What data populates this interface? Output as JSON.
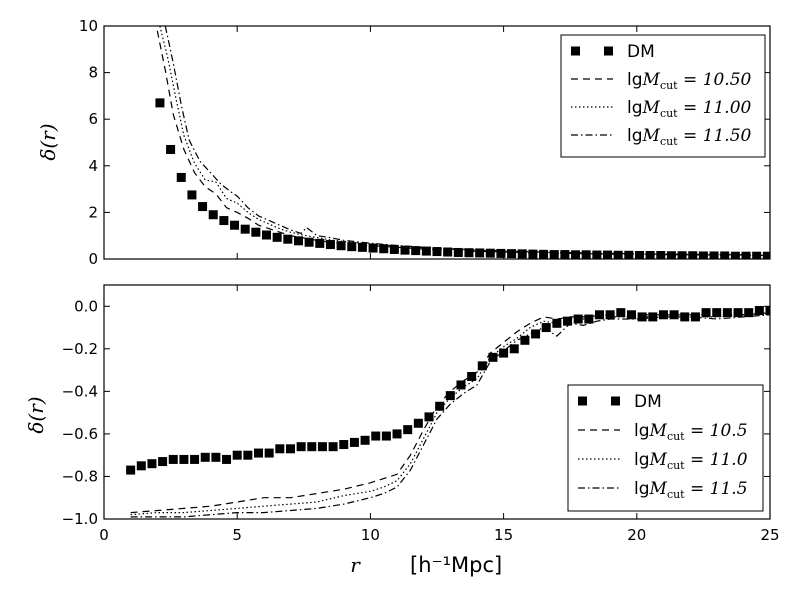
{
  "chart_data": [
    {
      "type": "scatter+line",
      "panel": "top",
      "title": "",
      "xlabel": "",
      "ylabel": "δ(r)",
      "xlim": [
        0,
        25
      ],
      "ylim": [
        0,
        10
      ],
      "xticks": [
        0,
        5,
        10,
        15,
        20,
        25
      ],
      "yticks": [
        0,
        2,
        4,
        6,
        8,
        10
      ],
      "xtick_labels_visible": false,
      "legend_position": "top-right",
      "series": [
        {
          "name": "DM",
          "legend_label": "DM",
          "style": "square-markers",
          "x": [
            2.1,
            2.5,
            2.9,
            3.3,
            3.7,
            4.1,
            4.5,
            4.9,
            5.3,
            5.7,
            6.1,
            6.5,
            6.9,
            7.3,
            7.7,
            8.1,
            8.5,
            8.9,
            9.3,
            9.7,
            10.1,
            10.5,
            10.9,
            11.3,
            11.7,
            12.1,
            12.5,
            12.9,
            13.3,
            13.7,
            14.1,
            14.5,
            14.9,
            15.3,
            15.7,
            16.1,
            16.5,
            16.9,
            17.3,
            17.7,
            18.1,
            18.5,
            18.9,
            19.3,
            19.7,
            20.1,
            20.5,
            20.9,
            21.3,
            21.7,
            22.1,
            22.5,
            22.9,
            23.3,
            23.7,
            24.1,
            24.5,
            24.9
          ],
          "y": [
            6.7,
            4.7,
            3.5,
            2.75,
            2.25,
            1.9,
            1.65,
            1.45,
            1.28,
            1.15,
            1.03,
            0.93,
            0.85,
            0.78,
            0.72,
            0.67,
            0.62,
            0.57,
            0.53,
            0.5,
            0.47,
            0.44,
            0.41,
            0.38,
            0.36,
            0.34,
            0.32,
            0.3,
            0.28,
            0.27,
            0.26,
            0.25,
            0.24,
            0.23,
            0.22,
            0.21,
            0.2,
            0.19,
            0.19,
            0.18,
            0.18,
            0.17,
            0.17,
            0.16,
            0.16,
            0.15,
            0.15,
            0.15,
            0.14,
            0.14,
            0.14,
            0.13,
            0.13,
            0.13,
            0.12,
            0.12,
            0.12,
            0.12
          ]
        },
        {
          "name": "lgMcut=10.50",
          "legend_prefix": "lg",
          "legend_math": "M",
          "legend_sub": "cut",
          "legend_value": " = 10.50",
          "style": "dashed",
          "x": [
            2.0,
            2.3,
            2.6,
            3.0,
            3.4,
            3.8,
            4.2,
            4.6,
            5.0,
            5.4,
            5.8,
            6.2,
            6.6,
            7.0,
            7.5,
            8.0,
            8.5,
            9.0,
            10.0,
            11.0,
            12.0,
            13.0,
            14.0,
            15.0,
            16.0,
            17.0,
            18.0,
            19.0,
            20.0,
            21.0,
            22.0,
            23.0,
            24.0,
            25.0
          ],
          "y": [
            9.8,
            8.1,
            6.2,
            4.7,
            3.7,
            3.1,
            2.8,
            2.2,
            2.0,
            1.75,
            1.45,
            1.3,
            1.15,
            1.0,
            0.9,
            0.8,
            0.72,
            0.66,
            0.58,
            0.5,
            0.43,
            0.38,
            0.33,
            0.3,
            0.27,
            0.25,
            0.23,
            0.21,
            0.2,
            0.19,
            0.18,
            0.17,
            0.16,
            0.15
          ]
        },
        {
          "name": "lgMcut=11.00",
          "legend_prefix": "lg",
          "legend_math": "M",
          "legend_sub": "cut",
          "legend_value": " = 11.00",
          "style": "dotted",
          "x": [
            2.1,
            2.4,
            2.7,
            3.0,
            3.4,
            3.8,
            4.2,
            4.6,
            5.0,
            5.4,
            5.8,
            6.2,
            6.6,
            7.0,
            7.5,
            8.0,
            8.5,
            9.0,
            10.0,
            11.0,
            12.0,
            13.0,
            14.0,
            15.0,
            16.0,
            17.0,
            18.0,
            19.0,
            20.0,
            21.0,
            22.0,
            23.0,
            24.0,
            25.0
          ],
          "y": [
            10.0,
            8.6,
            6.9,
            5.3,
            4.1,
            3.4,
            3.3,
            2.6,
            2.4,
            2.0,
            1.7,
            1.5,
            1.3,
            1.15,
            1.02,
            0.92,
            0.82,
            0.75,
            0.65,
            0.56,
            0.48,
            0.42,
            0.37,
            0.33,
            0.3,
            0.27,
            0.25,
            0.23,
            0.21,
            0.2,
            0.19,
            0.18,
            0.17,
            0.16
          ]
        },
        {
          "name": "lgMcut=11.50",
          "legend_prefix": "lg",
          "legend_math": "M",
          "legend_sub": "cut",
          "legend_value": " = 11.50",
          "style": "dashdot",
          "x": [
            2.3,
            2.6,
            2.9,
            3.2,
            3.6,
            4.0,
            4.4,
            4.8,
            5.0,
            5.4,
            5.8,
            6.2,
            6.6,
            7.0,
            7.4,
            7.6,
            8.0,
            8.5,
            9.0,
            10.0,
            11.0,
            12.0,
            13.0,
            14.0,
            15.0,
            16.0,
            17.0,
            18.0,
            19.0,
            20.0,
            21.0,
            22.0,
            23.0,
            24.0,
            25.0
          ],
          "y": [
            10.0,
            8.4,
            6.6,
            5.1,
            4.2,
            3.7,
            3.2,
            2.85,
            2.7,
            2.2,
            1.85,
            1.65,
            1.45,
            1.25,
            1.1,
            1.35,
            1.0,
            0.92,
            0.8,
            0.68,
            0.58,
            0.5,
            0.44,
            0.39,
            0.35,
            0.31,
            0.28,
            0.26,
            0.24,
            0.22,
            0.21,
            0.2,
            0.19,
            0.18,
            0.17
          ]
        }
      ]
    },
    {
      "type": "scatter+line",
      "panel": "bottom",
      "title": "",
      "xlabel": "r",
      "xlabel_unit": "[h⁻¹Mpc]",
      "ylabel": "δ(r)",
      "xlim": [
        0,
        25
      ],
      "ylim": [
        -1.0,
        0.1
      ],
      "xticks": [
        0,
        5,
        10,
        15,
        20,
        25
      ],
      "yticks": [
        -1.0,
        -0.8,
        -0.6,
        -0.4,
        -0.2,
        0.0
      ],
      "xtick_labels": [
        "0",
        "5",
        "10",
        "15",
        "20",
        "25"
      ],
      "ytick_labels": [
        "−1.0",
        "−0.8",
        "−0.6",
        "−0.4",
        "−0.2",
        "0.0"
      ],
      "legend_position": "bottom-right",
      "series": [
        {
          "name": "DM",
          "legend_label": "DM",
          "style": "square-markers",
          "x": [
            1.0,
            1.4,
            1.8,
            2.2,
            2.6,
            3.0,
            3.4,
            3.8,
            4.2,
            4.6,
            5.0,
            5.4,
            5.8,
            6.2,
            6.6,
            7.0,
            7.4,
            7.8,
            8.2,
            8.6,
            9.0,
            9.4,
            9.8,
            10.2,
            10.6,
            11.0,
            11.4,
            11.8,
            12.2,
            12.6,
            13.0,
            13.4,
            13.8,
            14.2,
            14.6,
            15.0,
            15.4,
            15.8,
            16.2,
            16.6,
            17.0,
            17.4,
            17.8,
            18.2,
            18.6,
            19.0,
            19.4,
            19.8,
            20.2,
            20.6,
            21.0,
            21.4,
            21.8,
            22.2,
            22.6,
            23.0,
            23.4,
            23.8,
            24.2,
            24.6,
            25.0
          ],
          "y": [
            -0.77,
            -0.75,
            -0.74,
            -0.73,
            -0.72,
            -0.72,
            -0.72,
            -0.71,
            -0.71,
            -0.72,
            -0.7,
            -0.7,
            -0.69,
            -0.69,
            -0.67,
            -0.67,
            -0.66,
            -0.66,
            -0.66,
            -0.66,
            -0.65,
            -0.64,
            -0.63,
            -0.61,
            -0.61,
            -0.6,
            -0.58,
            -0.55,
            -0.52,
            -0.47,
            -0.42,
            -0.37,
            -0.33,
            -0.28,
            -0.24,
            -0.22,
            -0.2,
            -0.16,
            -0.13,
            -0.1,
            -0.08,
            -0.07,
            -0.06,
            -0.06,
            -0.04,
            -0.04,
            -0.03,
            -0.04,
            -0.05,
            -0.05,
            -0.04,
            -0.04,
            -0.05,
            -0.05,
            -0.03,
            -0.03,
            -0.03,
            -0.03,
            -0.03,
            -0.02,
            -0.02
          ]
        },
        {
          "name": "lgMcut=10.5",
          "legend_prefix": "lg",
          "legend_math": "M",
          "legend_sub": "cut",
          "legend_value": " = 10.5",
          "style": "dashed",
          "x": [
            1.0,
            2.0,
            3.0,
            4.0,
            5.0,
            6.0,
            7.0,
            8.0,
            9.0,
            10.0,
            10.5,
            11.0,
            11.5,
            12.0,
            12.5,
            13.0,
            13.5,
            14.0,
            14.5,
            15.0,
            15.5,
            16.0,
            16.5,
            17.0,
            17.5,
            18.0,
            19.0,
            20.0,
            21.0,
            22.0,
            23.0,
            24.0,
            25.0
          ],
          "y": [
            -0.97,
            -0.96,
            -0.95,
            -0.94,
            -0.92,
            -0.9,
            -0.9,
            -0.88,
            -0.86,
            -0.83,
            -0.81,
            -0.79,
            -0.7,
            -0.58,
            -0.47,
            -0.4,
            -0.35,
            -0.31,
            -0.22,
            -0.17,
            -0.12,
            -0.08,
            -0.05,
            -0.06,
            -0.05,
            -0.05,
            -0.04,
            -0.04,
            -0.04,
            -0.04,
            -0.04,
            -0.04,
            -0.03
          ]
        },
        {
          "name": "lgMcut=11.0",
          "legend_prefix": "lg",
          "legend_math": "M",
          "legend_sub": "cut",
          "legend_value": " = 11.0",
          "style": "dotted",
          "x": [
            1.0,
            2.0,
            3.0,
            4.0,
            5.0,
            6.0,
            7.0,
            8.0,
            9.0,
            10.0,
            10.5,
            11.0,
            11.5,
            12.0,
            12.5,
            13.0,
            13.5,
            14.0,
            14.5,
            15.0,
            15.5,
            16.0,
            16.5,
            17.0,
            17.5,
            18.0,
            19.0,
            20.0,
            21.0,
            22.0,
            23.0,
            24.0,
            25.0
          ],
          "y": [
            -0.98,
            -0.97,
            -0.97,
            -0.96,
            -0.95,
            -0.94,
            -0.93,
            -0.92,
            -0.89,
            -0.87,
            -0.85,
            -0.82,
            -0.74,
            -0.62,
            -0.5,
            -0.43,
            -0.38,
            -0.34,
            -0.24,
            -0.19,
            -0.15,
            -0.1,
            -0.07,
            -0.08,
            -0.06,
            -0.06,
            -0.05,
            -0.05,
            -0.05,
            -0.05,
            -0.05,
            -0.04,
            -0.04
          ]
        },
        {
          "name": "lgMcut=11.5",
          "legend_prefix": "lg",
          "legend_math": "M",
          "legend_sub": "cut",
          "legend_value": " = 11.5",
          "style": "dashdot",
          "x": [
            1.0,
            2.0,
            3.0,
            4.0,
            5.0,
            6.0,
            7.0,
            8.0,
            9.0,
            10.0,
            10.5,
            11.0,
            11.5,
            12.0,
            12.5,
            13.0,
            13.5,
            14.0,
            14.5,
            15.0,
            15.5,
            16.0,
            16.5,
            17.0,
            17.5,
            18.0,
            18.5,
            19.0,
            19.5,
            20.0,
            21.0,
            22.0,
            23.0,
            24.0,
            25.0
          ],
          "y": [
            -0.99,
            -0.99,
            -0.99,
            -0.98,
            -0.97,
            -0.97,
            -0.96,
            -0.95,
            -0.93,
            -0.9,
            -0.88,
            -0.85,
            -0.77,
            -0.65,
            -0.53,
            -0.46,
            -0.41,
            -0.37,
            -0.26,
            -0.21,
            -0.16,
            -0.13,
            -0.1,
            -0.14,
            -0.08,
            -0.09,
            -0.07,
            -0.06,
            -0.06,
            -0.06,
            -0.05,
            -0.05,
            -0.06,
            -0.05,
            -0.04
          ]
        }
      ]
    }
  ]
}
